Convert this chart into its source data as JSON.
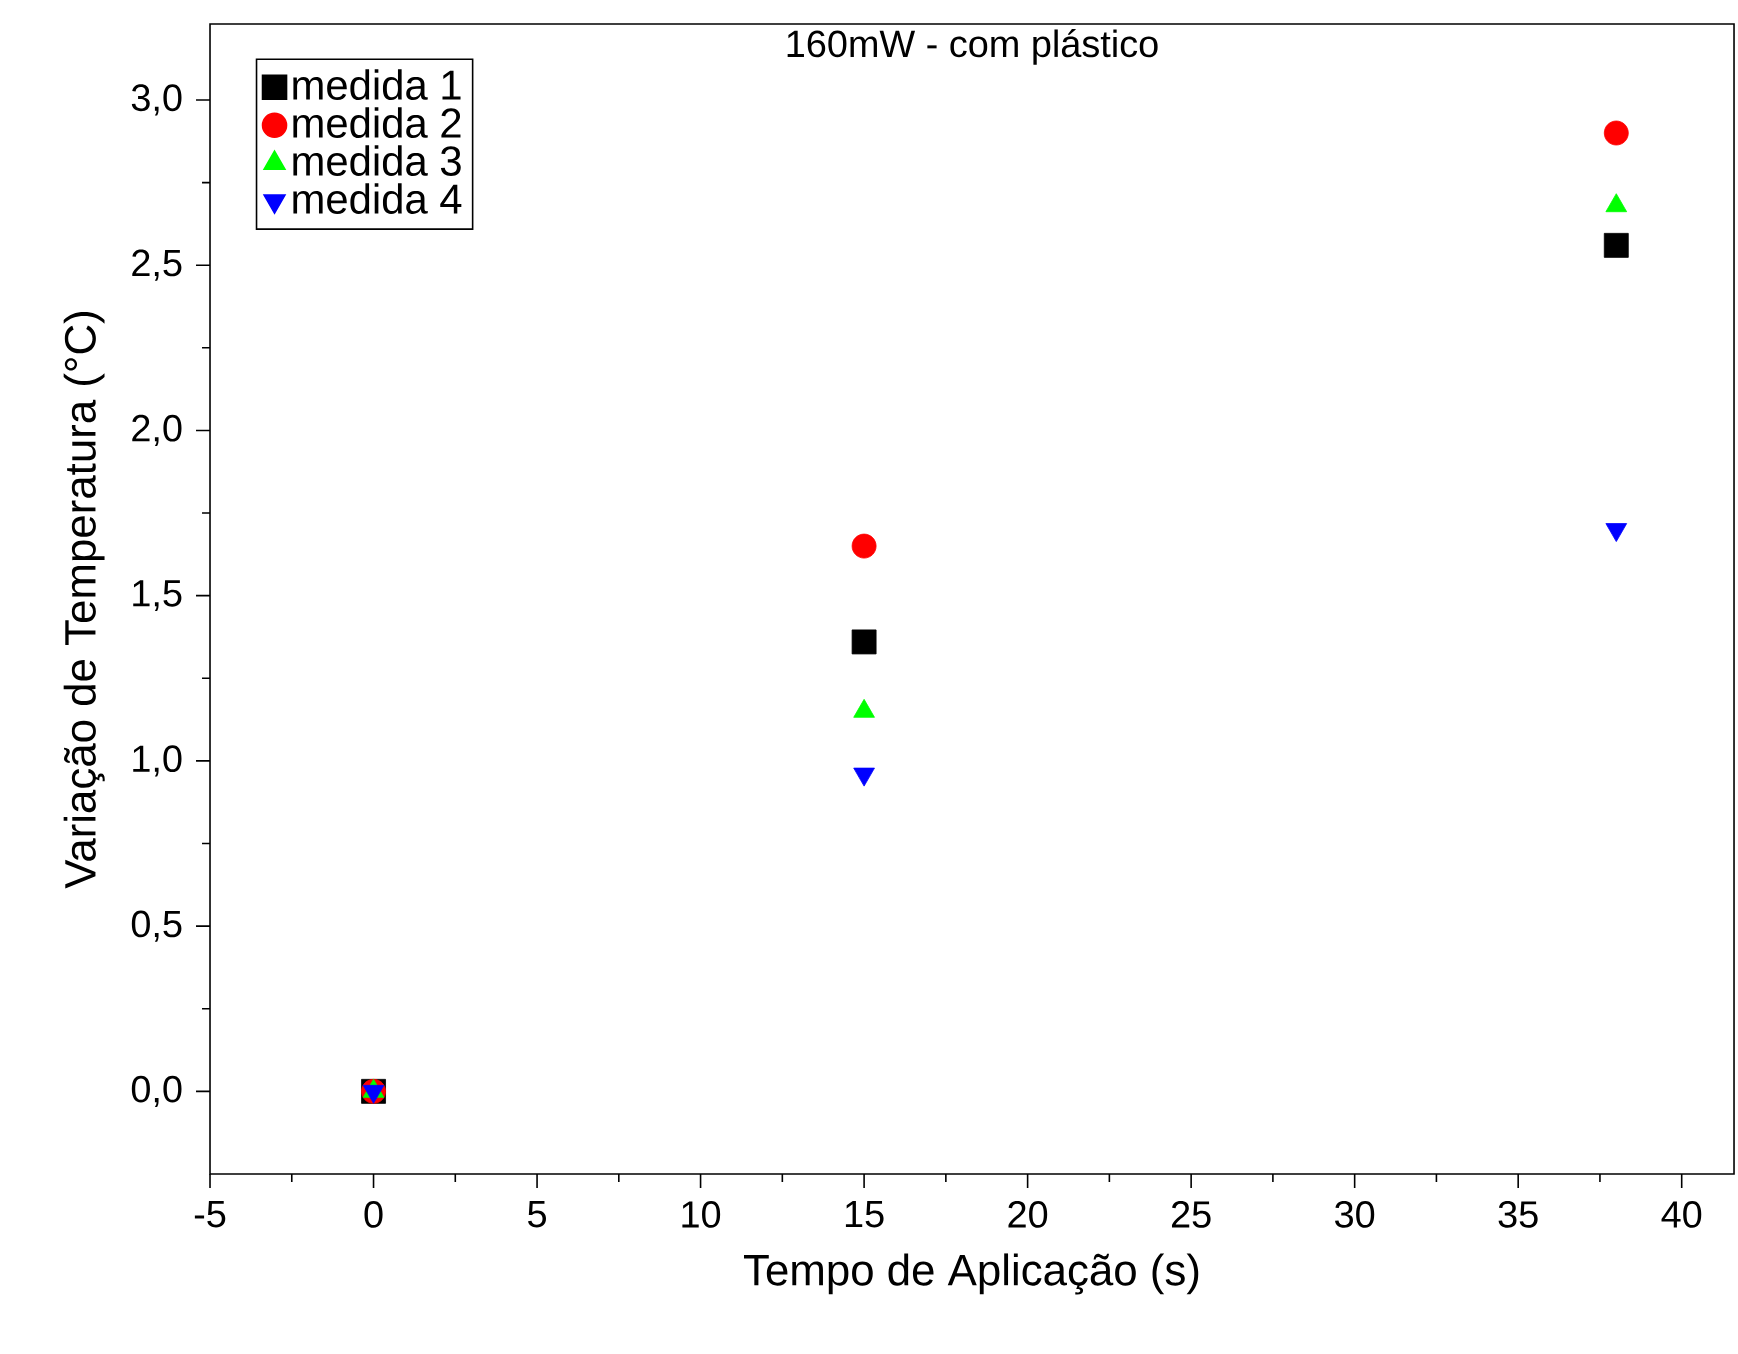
{
  "chart_data": {
    "type": "scatter",
    "title": "160mW - com plástico",
    "xlabel": "Tempo de Aplicação (s)",
    "ylabel": "Variação de Temperatura (°C)",
    "x": [
      0,
      15,
      38
    ],
    "series": [
      {
        "name": "medida 1",
        "color": "#000000",
        "marker": "square",
        "values": [
          0,
          1.36,
          2.56
        ]
      },
      {
        "name": "medida 2",
        "color": "#ff0000",
        "marker": "circle",
        "values": [
          0,
          1.65,
          2.9
        ]
      },
      {
        "name": "medida 3",
        "color": "#00ff00",
        "marker": "triangle",
        "values": [
          0,
          1.15,
          2.68
        ]
      },
      {
        "name": "medida 4",
        "color": "#0000ff",
        "marker": "triangle-down",
        "values": [
          0,
          0.96,
          1.7
        ]
      }
    ],
    "xlim": [
      -5,
      41.6
    ],
    "ylim": [
      -0.25,
      3.23
    ],
    "xticks": [
      -5,
      0,
      5,
      10,
      15,
      20,
      25,
      30,
      35,
      40
    ],
    "yticks": [
      {
        "value": 0,
        "label": "0,0"
      },
      {
        "value": 0.5,
        "label": "0,5"
      },
      {
        "value": 1,
        "label": "1,0"
      },
      {
        "value": 1.5,
        "label": "1,5"
      },
      {
        "value": 2,
        "label": "2,0"
      },
      {
        "value": 2.5,
        "label": "2,5"
      },
      {
        "value": 3,
        "label": "3,0"
      }
    ],
    "grid": false,
    "legend": "top left"
  }
}
